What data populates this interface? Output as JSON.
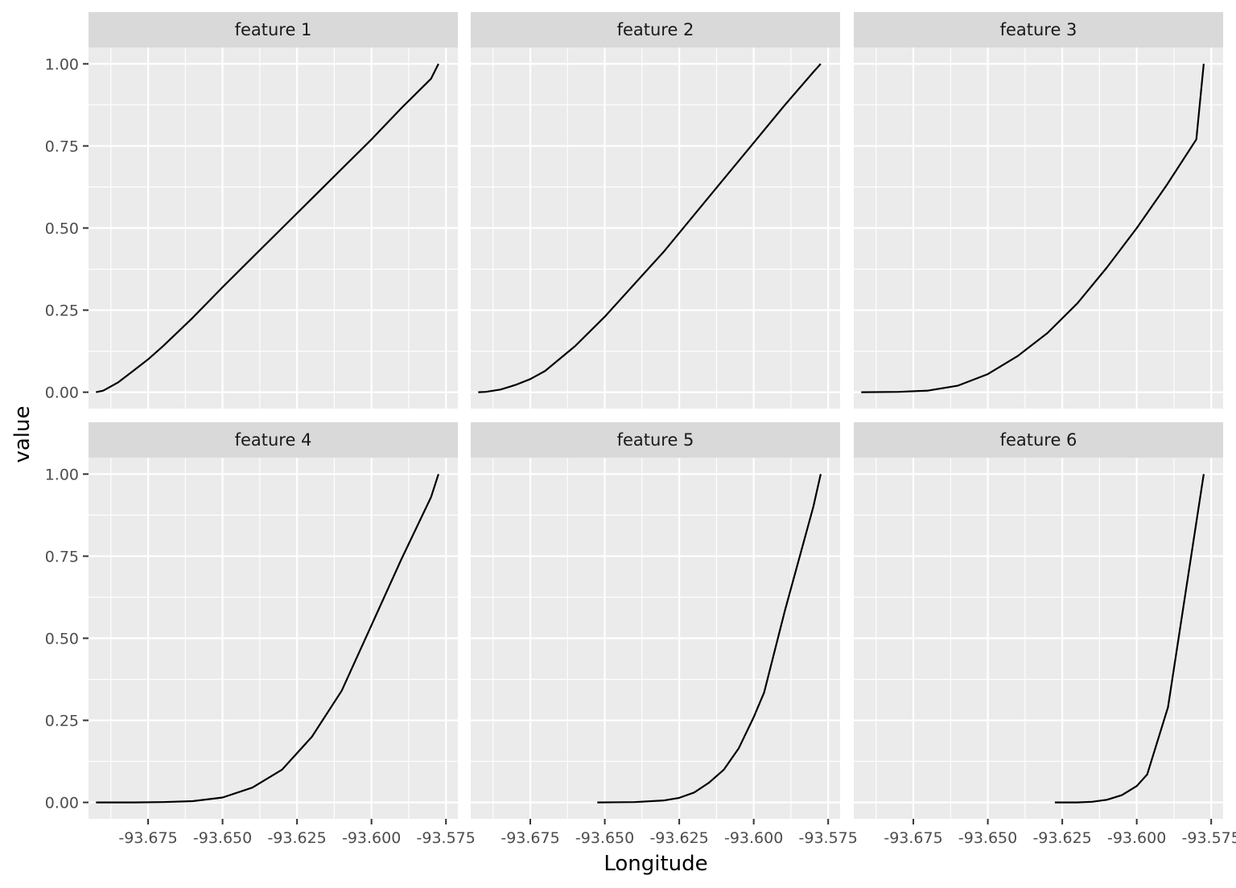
{
  "chart_data": {
    "type": "line",
    "layout": "facet-grid 2x3",
    "xlabel": "Longitude",
    "ylabel": "value",
    "xlim": [
      -93.695,
      -93.571
    ],
    "ylim": [
      -0.05,
      1.05
    ],
    "x_ticks": [
      -93.675,
      -93.65,
      -93.625,
      -93.6,
      -93.575
    ],
    "x_tick_labels": [
      "-93.675",
      "-93.650",
      "-93.625",
      "-93.600",
      "-93.575"
    ],
    "y_ticks": [
      0,
      0.25,
      0.5,
      0.75,
      1.0
    ],
    "y_tick_labels": [
      "0.00",
      "0.25",
      "0.50",
      "0.75",
      "1.00"
    ],
    "grid": true,
    "colors": {
      "panel_background": "#ebebeb",
      "strip_background": "#d9d9d9",
      "grid_major": "#ffffff",
      "line": "#000000"
    },
    "panels": [
      {
        "title": "feature 1",
        "x": [
          -93.6925,
          -93.69,
          -93.685,
          -93.68,
          -93.675,
          -93.67,
          -93.66,
          -93.65,
          -93.64,
          -93.63,
          -93.62,
          -93.61,
          -93.6,
          -93.59,
          -93.58,
          -93.5775
        ],
        "y": [
          0.0,
          0.005,
          0.03,
          0.065,
          0.1,
          0.14,
          0.227,
          0.32,
          0.41,
          0.5,
          0.59,
          0.68,
          0.77,
          0.865,
          0.955,
          1.0
        ]
      },
      {
        "title": "feature 2",
        "x": [
          -93.6925,
          -93.69,
          -93.685,
          -93.68,
          -93.675,
          -93.67,
          -93.66,
          -93.65,
          -93.64,
          -93.63,
          -93.62,
          -93.61,
          -93.6,
          -93.59,
          -93.58,
          -93.5775
        ],
        "y": [
          0.0,
          0.001,
          0.008,
          0.022,
          0.04,
          0.065,
          0.14,
          0.23,
          0.33,
          0.43,
          0.54,
          0.65,
          0.76,
          0.87,
          0.975,
          1.0
        ]
      },
      {
        "title": "feature 3",
        "x": [
          -93.6925,
          -93.68,
          -93.67,
          -93.66,
          -93.65,
          -93.64,
          -93.63,
          -93.62,
          -93.61,
          -93.6,
          -93.59,
          -93.58,
          -93.5775
        ],
        "y": [
          0.0,
          0.001,
          0.005,
          0.02,
          0.055,
          0.11,
          0.18,
          0.27,
          0.38,
          0.5,
          0.63,
          0.77,
          1.0
        ]
      },
      {
        "title": "feature 4",
        "x": [
          -93.6925,
          -93.68,
          -93.67,
          -93.66,
          -93.65,
          -93.64,
          -93.63,
          -93.62,
          -93.61,
          -93.6,
          -93.59,
          -93.58,
          -93.5775
        ],
        "y": [
          0.0,
          0.0,
          0.001,
          0.004,
          0.015,
          0.045,
          0.1,
          0.2,
          0.34,
          0.54,
          0.74,
          0.93,
          1.0
        ]
      },
      {
        "title": "feature 5",
        "x": [
          -93.6525,
          -93.64,
          -93.63,
          -93.625,
          -93.62,
          -93.615,
          -93.61,
          -93.605,
          -93.6,
          -93.5965,
          -93.5895,
          -93.58,
          -93.5775
        ],
        "y": [
          0.0,
          0.001,
          0.006,
          0.014,
          0.03,
          0.06,
          0.1,
          0.165,
          0.26,
          0.335,
          0.585,
          0.9,
          1.0
        ]
      },
      {
        "title": "feature 6",
        "x": [
          -93.6275,
          -93.62,
          -93.615,
          -93.61,
          -93.605,
          -93.6,
          -93.5965,
          -93.5895,
          -93.5775
        ],
        "y": [
          0.0,
          0.0,
          0.002,
          0.008,
          0.022,
          0.05,
          0.085,
          0.29,
          1.0
        ]
      }
    ]
  }
}
